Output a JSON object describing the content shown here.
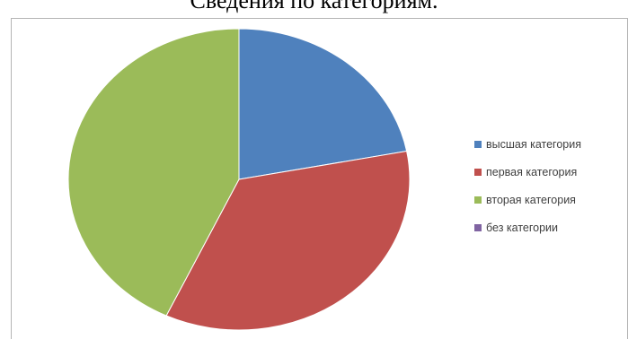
{
  "chart_data": {
    "type": "pie",
    "title": "Сведения по категориям.",
    "categories": [
      "высшая категория",
      "первая категория",
      "вторая категория",
      "без категории"
    ],
    "values": [
      22,
      35,
      43,
      0
    ],
    "colors": [
      "#4F81BD",
      "#C0504D",
      "#9BBB59",
      "#8064A2"
    ],
    "legend_position": "right",
    "start_angle_deg": 0,
    "direction": "clockwise"
  },
  "legend": {
    "items": [
      {
        "label": "высшая категория",
        "color": "#4F81BD"
      },
      {
        "label": "первая категория",
        "color": "#C0504D"
      },
      {
        "label": "вторая категория",
        "color": "#9BBB59"
      },
      {
        "label": "без категории",
        "color": "#8064A2"
      }
    ]
  }
}
